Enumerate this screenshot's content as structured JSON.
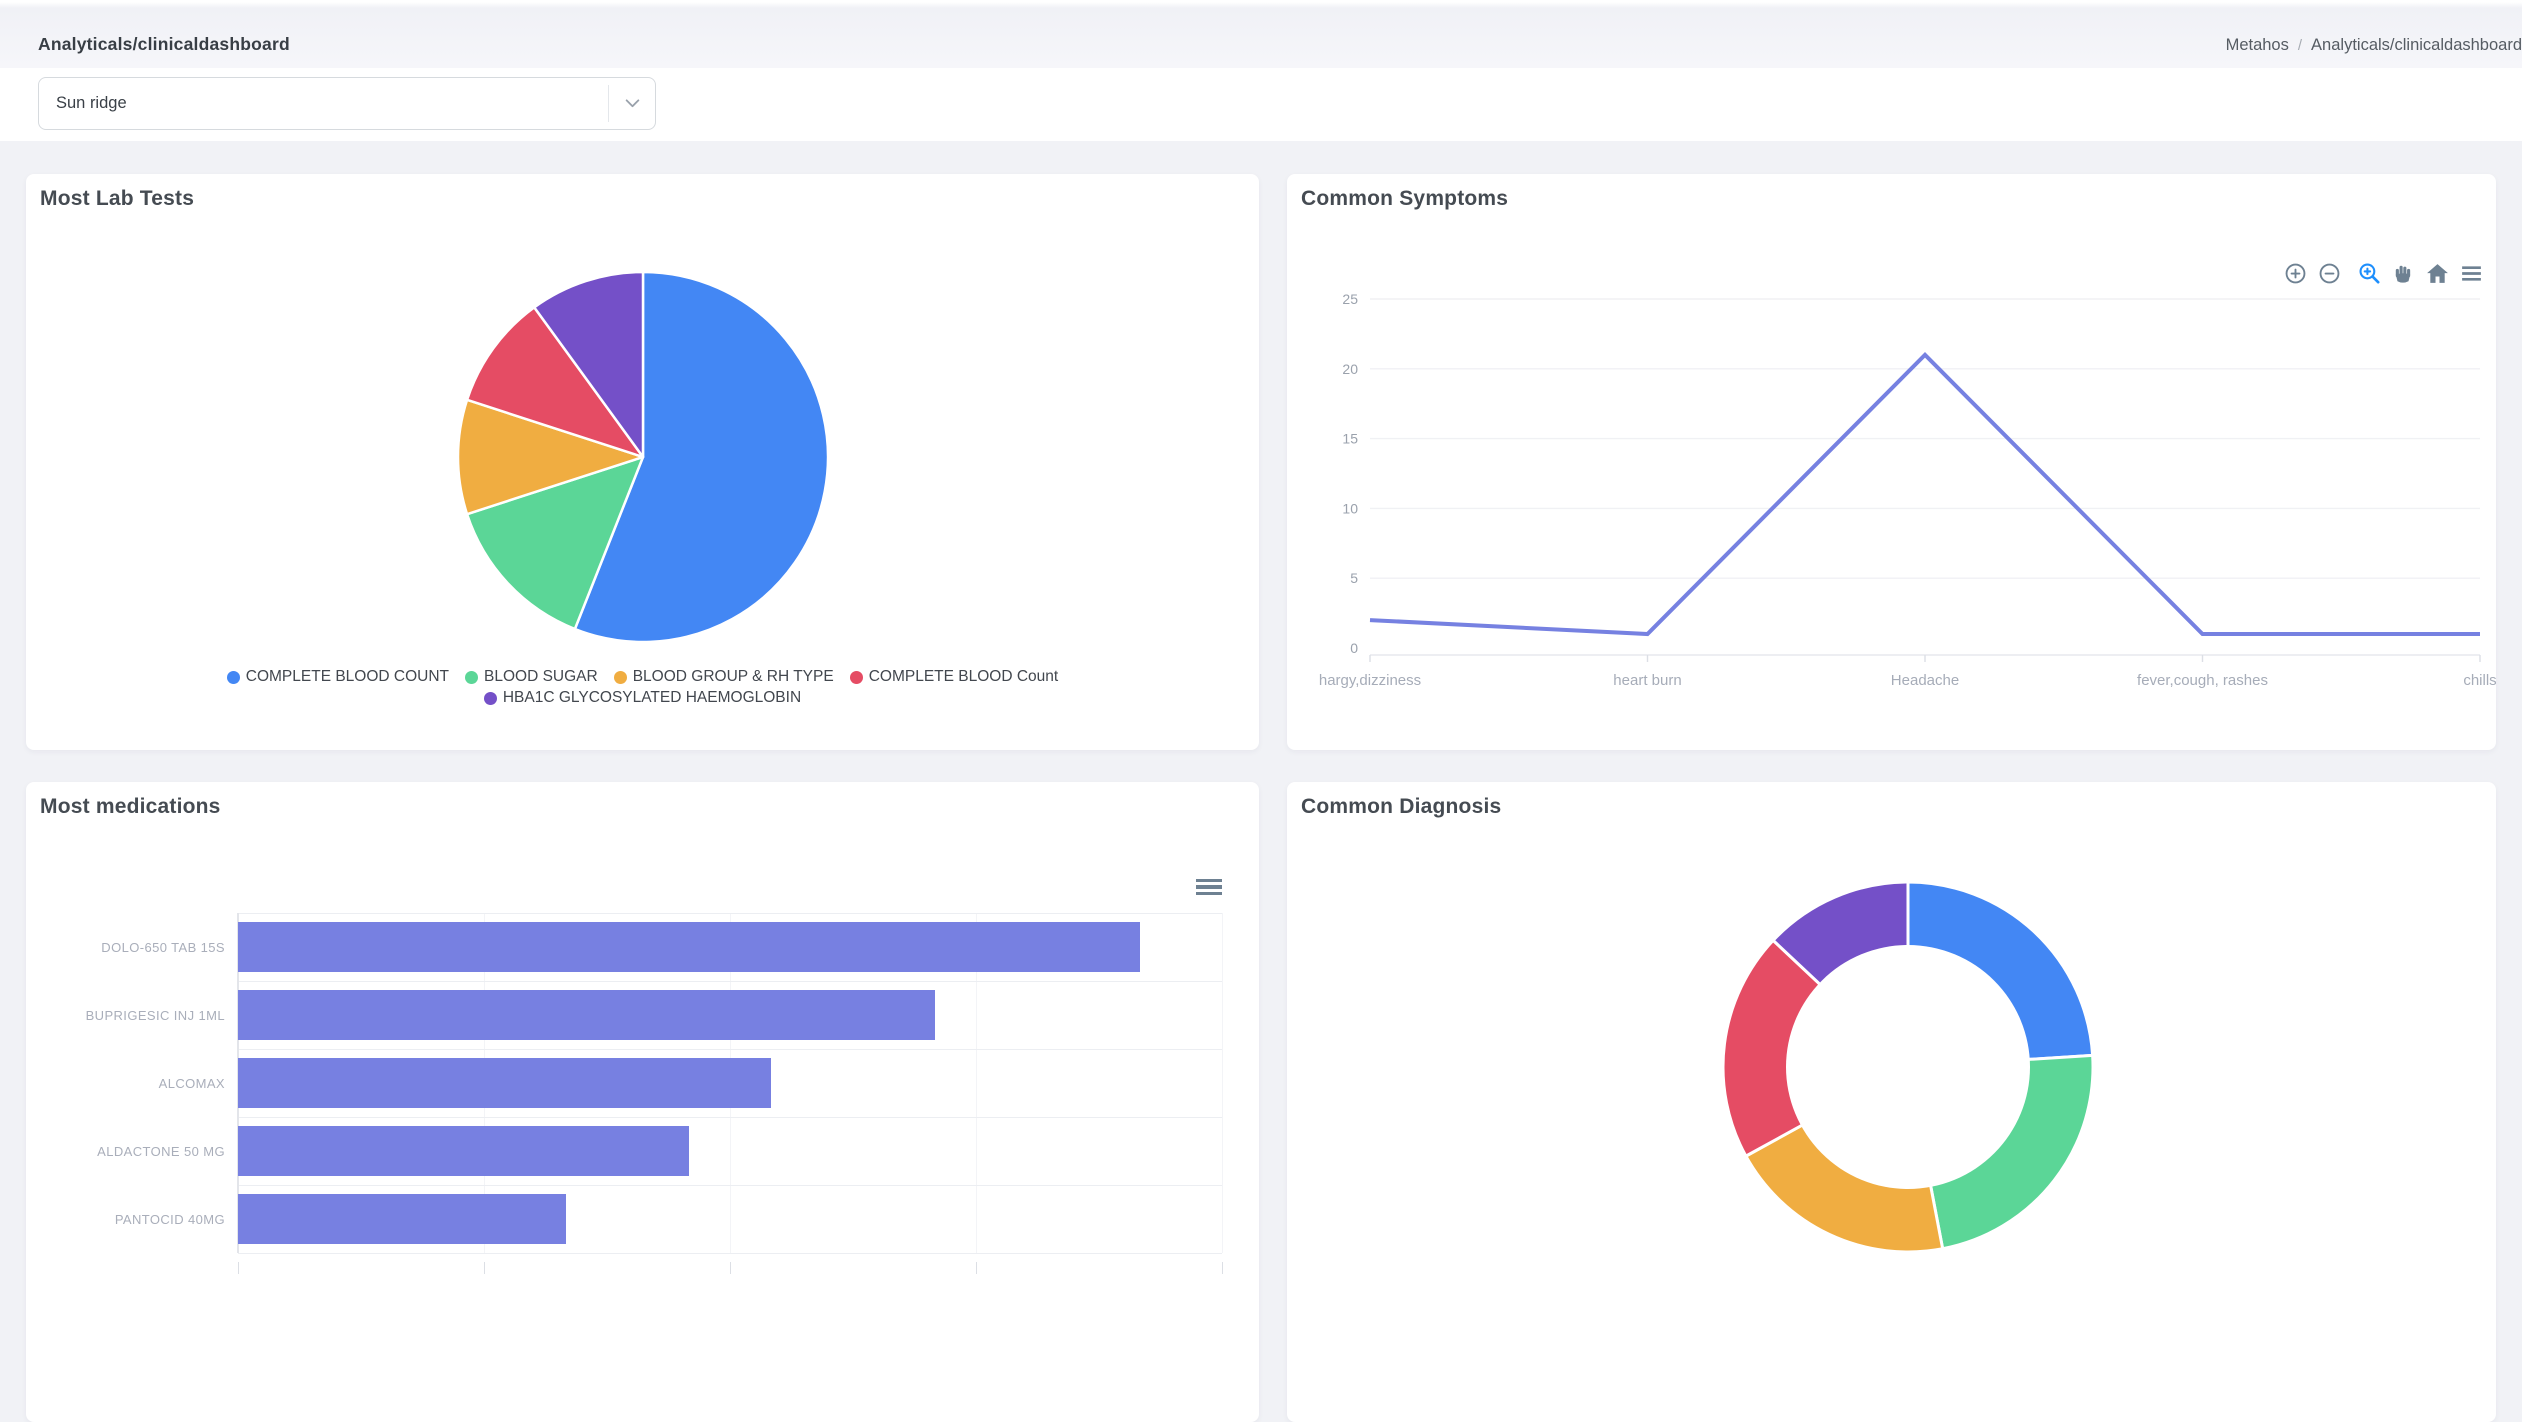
{
  "topbar": {
    "title": "Analyticals/clinicaldashboard",
    "breadcrumb": {
      "app": "Metahos",
      "separator": "/",
      "page": "Analyticals/clinicaldashboard"
    }
  },
  "filter": {
    "value": "Sun ridge"
  },
  "palette": {
    "blue": "#4387f4",
    "green": "#5bd697",
    "orange": "#f0ad41",
    "red": "#e54c64",
    "purple": "#7450c8",
    "periwinkle": "#7681e1",
    "toolbar_icon": "#6e8192",
    "toolbar_active": "#1e8ffd",
    "grid_line": "#f0f1f4",
    "axis_text": "#a6acb8",
    "page_bg": "#f1f2f6"
  },
  "chart_data": [
    {
      "type": "pie",
      "title": "Most Lab Tests",
      "labels": [
        "COMPLETE BLOOD COUNT",
        "BLOOD SUGAR",
        "BLOOD GROUP & RH TYPE",
        "COMPLETE BLOOD Count",
        "HBA1C GLYCOSYLATED HAEMOGLOBIN"
      ],
      "values_pct": [
        56,
        14,
        10,
        10,
        10
      ],
      "colors": [
        "#4387f4",
        "#5bd697",
        "#f0ad41",
        "#e54c64",
        "#7450c8"
      ],
      "start_angle_deg": 0,
      "direction": "clockwise",
      "legend_position": "bottom"
    },
    {
      "type": "line",
      "title": "Common Symptoms",
      "categories": [
        "hargy,dizziness",
        "heart burn",
        "Headache",
        "fever,cough, rashes",
        "chills"
      ],
      "values": [
        2,
        1,
        21,
        1,
        1
      ],
      "ylim": [
        0,
        25
      ],
      "yticks": [
        0,
        5,
        10,
        15,
        20,
        25
      ],
      "line_color": "#7681e1",
      "grid": "horizontal",
      "legend_position": "none",
      "toolbar": [
        "zoom-in",
        "zoom-out",
        "selection-zoom",
        "pan",
        "home",
        "menu"
      ]
    },
    {
      "type": "bar",
      "title": "Most medications",
      "orientation": "horizontal",
      "categories": [
        "DOLO-650 TAB 15S",
        "BUPRIGESIC INJ 1ML",
        "ALCOMAX",
        "ALDACTONE 50 MG",
        "PANTOCID 40MG"
      ],
      "values": [
        22,
        17,
        13,
        11,
        8
      ],
      "xlim": [
        0,
        24
      ],
      "x_gridline_step": 6,
      "bar_color": "#7780e1",
      "note_axis_labels": "x-axis tick labels cut off at bottom of viewport"
    },
    {
      "type": "pie",
      "title": "Common Diagnosis",
      "donut": true,
      "labels": [],
      "values_pct": [
        24,
        23,
        20,
        20,
        13
      ],
      "colors": [
        "#4387f4",
        "#5bd697",
        "#f0ad41",
        "#e54c64",
        "#7450c8"
      ],
      "start_angle_deg": 0,
      "direction": "clockwise"
    }
  ]
}
